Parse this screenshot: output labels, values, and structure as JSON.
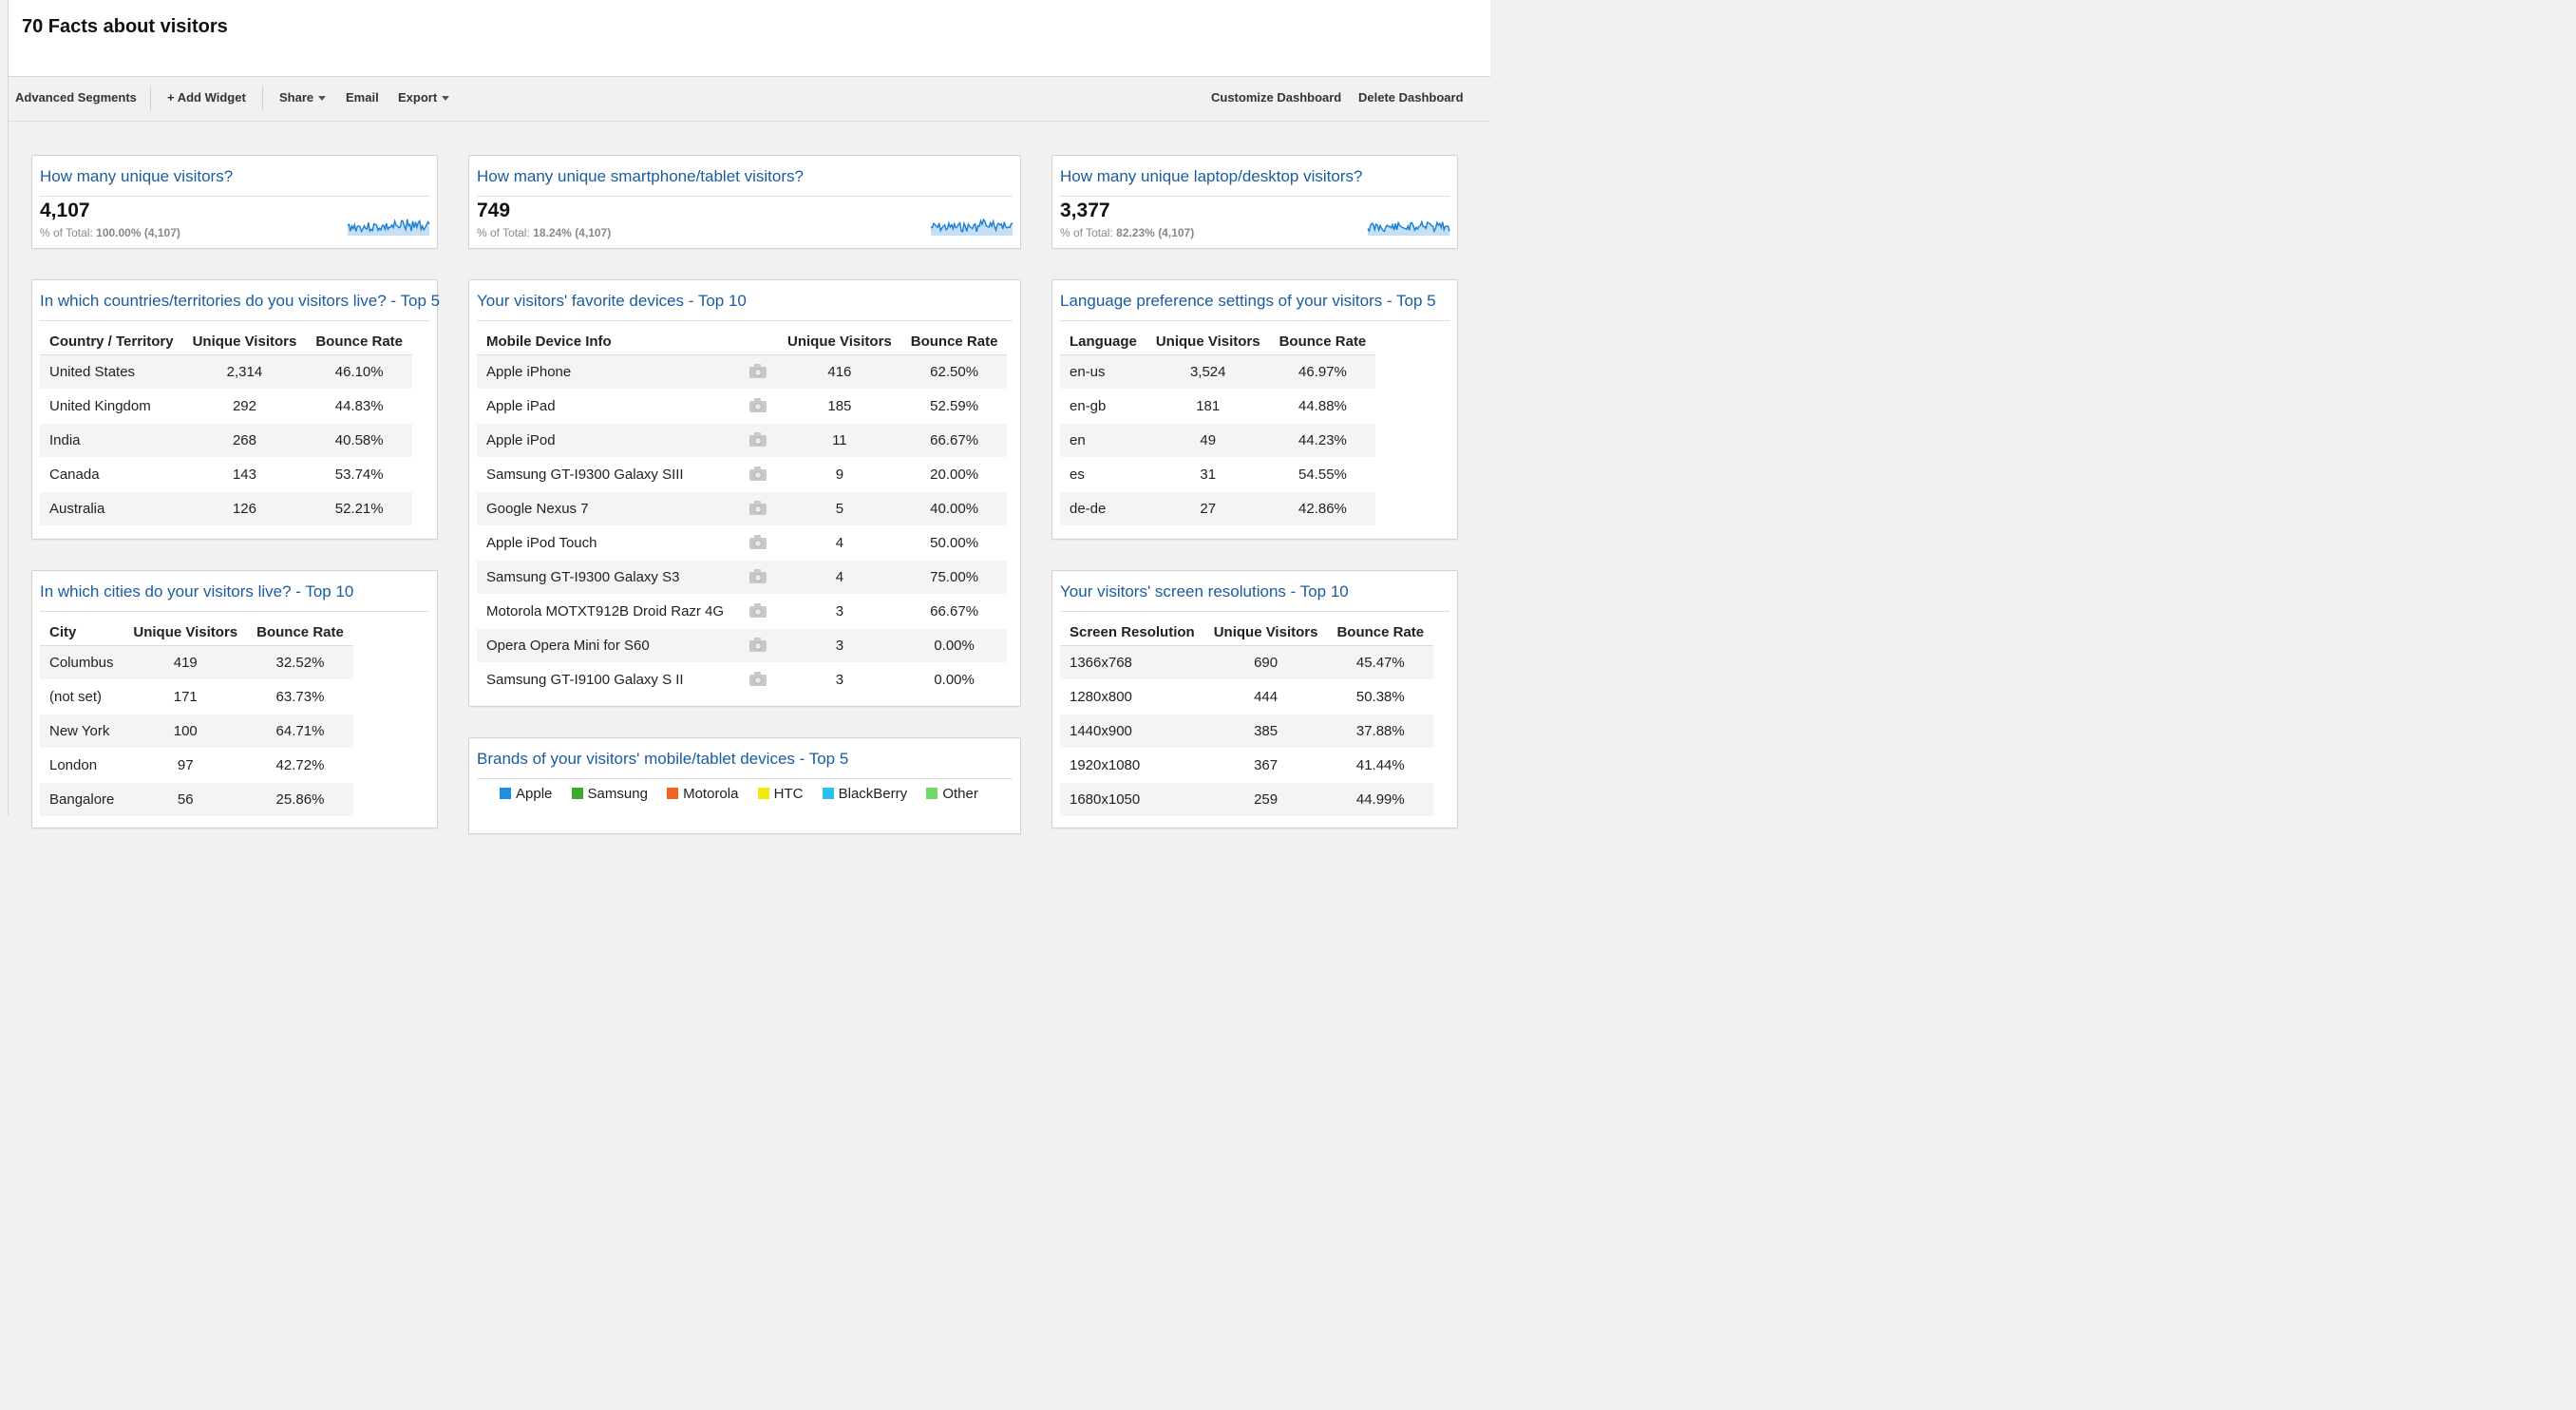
{
  "dashboard": {
    "title": "70 Facts about visitors"
  },
  "toolbar": {
    "advanced_segments": "Advanced Segments",
    "add_widget": "+ Add Widget",
    "share": "Share",
    "email": "Email",
    "export": "Export",
    "customize": "Customize Dashboard",
    "delete": "Delete Dashboard"
  },
  "metrics": [
    {
      "title": "How many unique visitors?",
      "value": "4,107",
      "sub_label": "% of Total:",
      "sub_value": "100.00% (4,107)"
    },
    {
      "title": "How many unique smartphone/tablet visitors?",
      "value": "749",
      "sub_label": "% of Total:",
      "sub_value": "18.24% (4,107)"
    },
    {
      "title": "How many unique laptop/desktop visitors?",
      "value": "3,377",
      "sub_label": "% of Total:",
      "sub_value": "82.23% (4,107)"
    }
  ],
  "countries": {
    "title": "In which countries/territories do you visitors live? - Top 5",
    "headers": [
      "Country / Territory",
      "Unique Visitors",
      "Bounce Rate"
    ],
    "rows": [
      [
        "United States",
        "2,314",
        "46.10%"
      ],
      [
        "United Kingdom",
        "292",
        "44.83%"
      ],
      [
        "India",
        "268",
        "40.58%"
      ],
      [
        "Canada",
        "143",
        "53.74%"
      ],
      [
        "Australia",
        "126",
        "52.21%"
      ]
    ]
  },
  "cities": {
    "title": "In which cities do your visitors live? - Top 10",
    "headers": [
      "City",
      "Unique Visitors",
      "Bounce Rate"
    ],
    "rows": [
      [
        "Columbus",
        "419",
        "32.52%"
      ],
      [
        "(not set)",
        "171",
        "63.73%"
      ],
      [
        "New York",
        "100",
        "64.71%"
      ],
      [
        "London",
        "97",
        "42.72%"
      ],
      [
        "Bangalore",
        "56",
        "25.86%"
      ]
    ]
  },
  "devices": {
    "title": "Your visitors' favorite devices - Top 10",
    "headers": [
      "Mobile Device Info",
      "",
      "Unique Visitors",
      "Bounce Rate"
    ],
    "icon": "camera-icon",
    "rows": [
      [
        "Apple iPhone",
        "416",
        "62.50%"
      ],
      [
        "Apple iPad",
        "185",
        "52.59%"
      ],
      [
        "Apple iPod",
        "11",
        "66.67%"
      ],
      [
        "Samsung GT-I9300 Galaxy SIII",
        "9",
        "20.00%"
      ],
      [
        "Google Nexus 7",
        "5",
        "40.00%"
      ],
      [
        "Apple iPod Touch",
        "4",
        "50.00%"
      ],
      [
        "Samsung GT-I9300 Galaxy S3",
        "4",
        "75.00%"
      ],
      [
        "Motorola MOTXT912B Droid Razr 4G",
        "3",
        "66.67%"
      ],
      [
        "Opera Opera Mini for S60",
        "3",
        "0.00%"
      ],
      [
        "Samsung GT-I9100 Galaxy S II",
        "3",
        "0.00%"
      ]
    ]
  },
  "brands": {
    "title": "Brands of your visitors' mobile/tablet devices - Top 5",
    "legend": [
      {
        "label": "Apple",
        "color": "#1f8fdd"
      },
      {
        "label": "Samsung",
        "color": "#3daa2f"
      },
      {
        "label": "Motorola",
        "color": "#f26322"
      },
      {
        "label": "HTC",
        "color": "#f3e90c"
      },
      {
        "label": "BlackBerry",
        "color": "#27c3ee"
      },
      {
        "label": "Other",
        "color": "#6fdc6a"
      }
    ]
  },
  "languages": {
    "title": "Language preference settings of your visitors - Top 5",
    "headers": [
      "Language",
      "Unique Visitors",
      "Bounce Rate"
    ],
    "rows": [
      [
        "en-us",
        "3,524",
        "46.97%"
      ],
      [
        "en-gb",
        "181",
        "44.88%"
      ],
      [
        "en",
        "49",
        "44.23%"
      ],
      [
        "es",
        "31",
        "54.55%"
      ],
      [
        "de-de",
        "27",
        "42.86%"
      ]
    ]
  },
  "resolutions": {
    "title": "Your visitors' screen resolutions - Top 10",
    "headers": [
      "Screen Resolution",
      "Unique Visitors",
      "Bounce Rate"
    ],
    "rows": [
      [
        "1366x768",
        "690",
        "45.47%"
      ],
      [
        "1280x800",
        "444",
        "50.38%"
      ],
      [
        "1440x900",
        "385",
        "37.88%"
      ],
      [
        "1920x1080",
        "367",
        "41.44%"
      ],
      [
        "1680x1050",
        "259",
        "44.99%"
      ]
    ]
  },
  "colors": {
    "link_blue": "#1a5c9e",
    "sparkline_blue": "#1a7fd4"
  }
}
